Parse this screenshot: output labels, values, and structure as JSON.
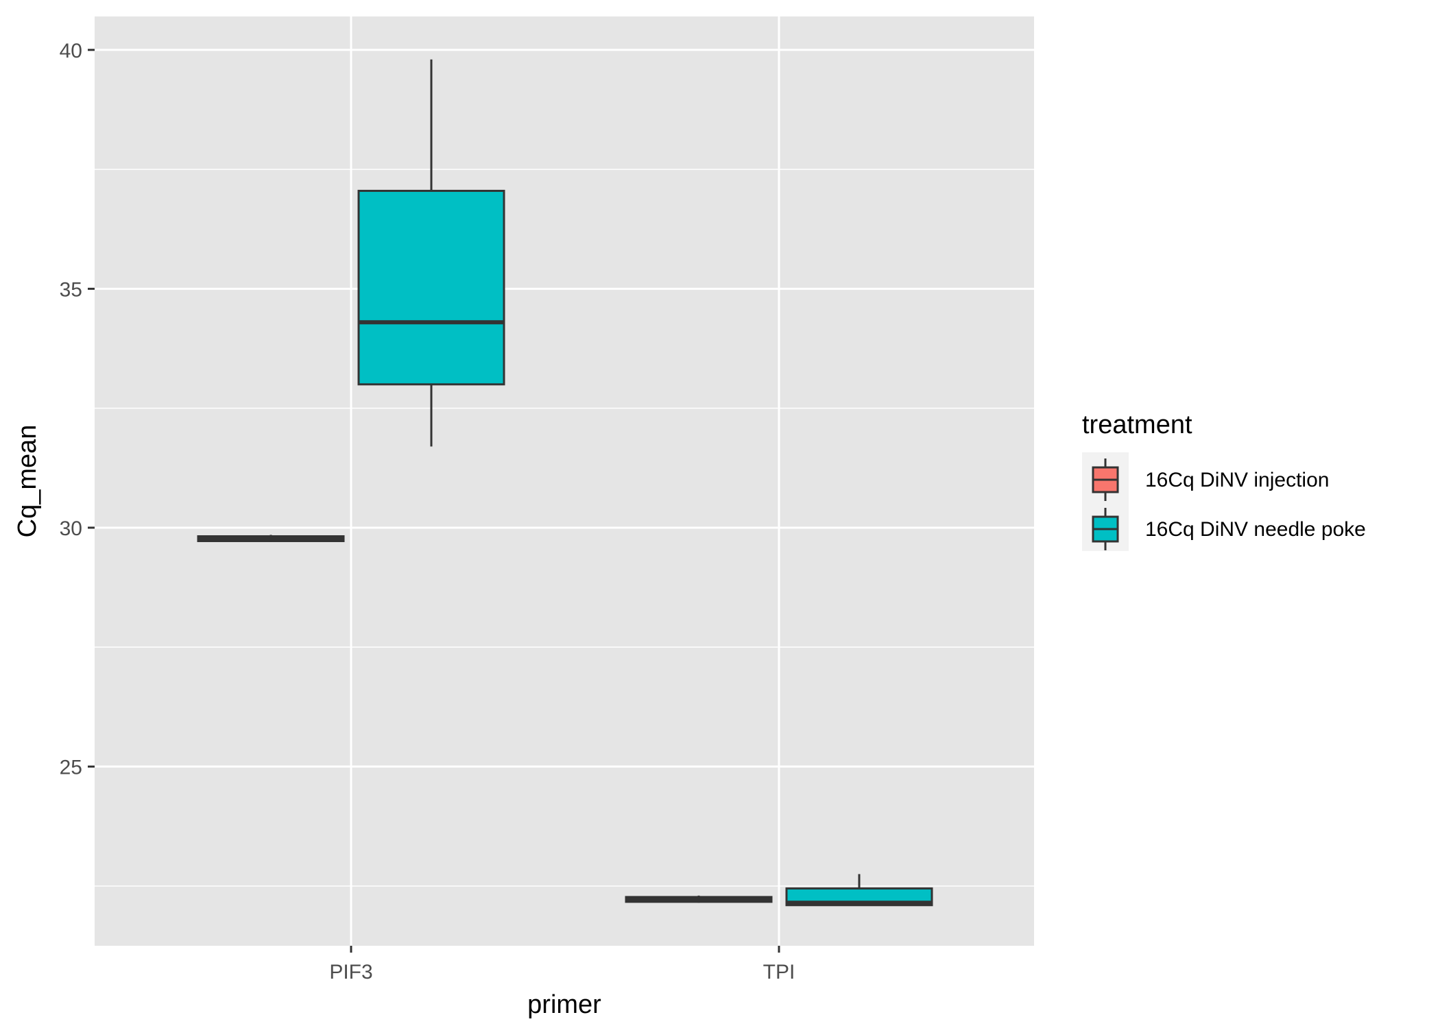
{
  "chart_data": {
    "type": "boxplot",
    "xlabel": "primer",
    "ylabel": "Cq_mean",
    "ylim": [
      21.25,
      40.7
    ],
    "yticks": [
      25,
      30,
      35,
      40
    ],
    "categories": [
      "PIF3",
      "TPI"
    ],
    "legend": {
      "title": "treatment",
      "position": "right",
      "entries": [
        "16Cq DiNV injection",
        "16Cq DiNV needle poke"
      ]
    },
    "series": [
      {
        "name": "16Cq DiNV injection",
        "color": "#F8766D",
        "boxes": [
          {
            "category": "PIF3",
            "min": 29.7,
            "q1": 29.72,
            "median": 29.77,
            "q3": 29.82,
            "max": 29.85
          },
          {
            "category": "TPI",
            "min": 22.15,
            "q1": 22.17,
            "median": 22.22,
            "q3": 22.27,
            "max": 22.3
          }
        ]
      },
      {
        "name": "16Cq DiNV needle poke",
        "color": "#00BFC4",
        "boxes": [
          {
            "category": "PIF3",
            "min": 31.7,
            "q1": 33.0,
            "median": 34.3,
            "q3": 37.05,
            "max": 39.8
          },
          {
            "category": "TPI",
            "min": 22.1,
            "q1": 22.1,
            "median": 22.15,
            "q3": 22.45,
            "max": 22.75
          }
        ]
      }
    ],
    "grid": true
  }
}
